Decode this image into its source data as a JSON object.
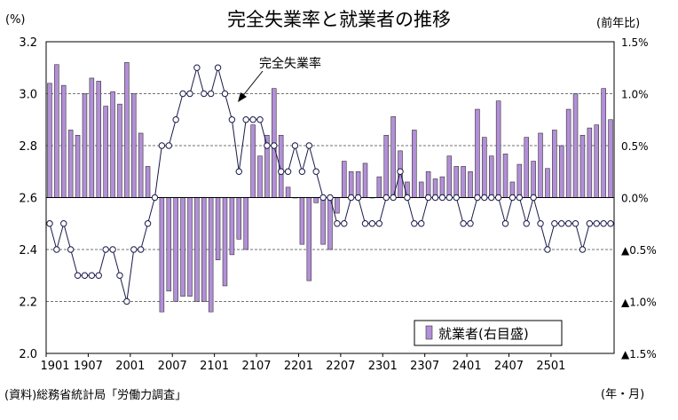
{
  "chart_data": {
    "type": "bar+line",
    "title": "完全失業率と就業者の推移",
    "ylabel_left": "(%)",
    "ylabel_right": "(前年比)",
    "xlabel": "(年・月)",
    "source": "(資料)総務省統計局「労働力調査」",
    "x_ticks": [
      "1901",
      "1907",
      "2001",
      "2007",
      "2101",
      "2107",
      "2201",
      "2207",
      "2301",
      "2307",
      "2401",
      "2407",
      "2501"
    ],
    "y_left": {
      "min": 2.0,
      "max": 3.2,
      "ticks": [
        "2.0",
        "2.2",
        "2.4",
        "2.6",
        "2.8",
        "3.0",
        "3.2"
      ]
    },
    "y_right": {
      "min": -1.5,
      "max": 1.5,
      "ticks": [
        "▲1.5%",
        "▲1.0%",
        "▲0.5%",
        "0.0%",
        "0.5%",
        "1.0%",
        "1.5%"
      ]
    },
    "series": [
      {
        "name": "就業者(右目盛)",
        "type": "bar",
        "color": "#b38fd8"
      },
      {
        "name": "完全失業率",
        "type": "line",
        "color": "#000000"
      }
    ],
    "line_annotation": "完全失業率",
    "legend_position": "bottom-right",
    "grid": "horizontal",
    "bar_values": [
      1.1,
      1.28,
      1.08,
      0.65,
      0.6,
      1.0,
      1.15,
      1.12,
      0.88,
      1.02,
      0.9,
      1.3,
      1.0,
      0.62,
      0.3,
      0.0,
      -1.1,
      -0.9,
      -1.0,
      -0.95,
      -0.95,
      -1.0,
      -1.0,
      -1.1,
      -0.6,
      -0.85,
      -0.55,
      -0.4,
      -0.5,
      0.7,
      0.4,
      0.6,
      1.05,
      0.6,
      0.1,
      0.0,
      -0.45,
      -0.8,
      -0.05,
      -0.45,
      -0.5,
      -0.15,
      0.35,
      0.25,
      0.25,
      0.33,
      0.0,
      0.2,
      0.6,
      0.78,
      0.45,
      0.15,
      0.65,
      0.15,
      0.25,
      0.18,
      0.2,
      0.4,
      0.3,
      0.3,
      0.25,
      0.85,
      0.58,
      0.4,
      0.93,
      0.42,
      0.15,
      0.32,
      0.58,
      0.35,
      0.62,
      0.28,
      0.65,
      0.5,
      0.85,
      1.0,
      0.6,
      0.67,
      0.7,
      1.05,
      0.75
    ],
    "rate_values": [
      2.5,
      2.4,
      2.5,
      2.4,
      2.3,
      2.3,
      2.3,
      2.3,
      2.4,
      2.4,
      2.3,
      2.2,
      2.4,
      2.4,
      2.5,
      2.6,
      2.8,
      2.8,
      2.9,
      3.0,
      3.0,
      3.1,
      3.0,
      3.0,
      3.1,
      3.0,
      2.9,
      2.7,
      2.9,
      2.9,
      2.9,
      2.8,
      2.8,
      2.7,
      2.7,
      2.8,
      2.7,
      2.8,
      2.7,
      2.6,
      2.6,
      2.5,
      2.5,
      2.6,
      2.6,
      2.5,
      2.5,
      2.5,
      2.6,
      2.6,
      2.7,
      2.6,
      2.5,
      2.5,
      2.6,
      2.6,
      2.6,
      2.6,
      2.6,
      2.5,
      2.5,
      2.6,
      2.6,
      2.6,
      2.6,
      2.5,
      2.6,
      2.6,
      2.5,
      2.6,
      2.5,
      2.4,
      2.5,
      2.5,
      2.5,
      2.5,
      2.4,
      2.5,
      2.5,
      2.5,
      2.5
    ]
  }
}
